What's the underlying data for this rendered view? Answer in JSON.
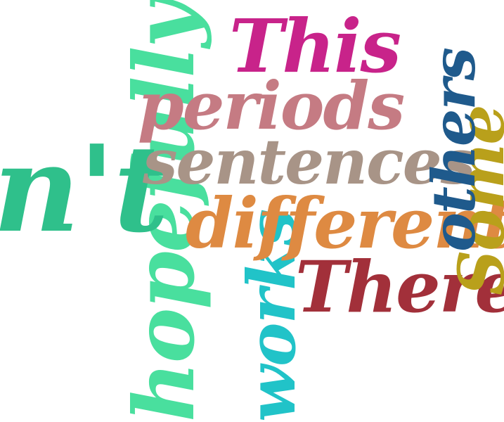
{
  "words": {
    "this": {
      "text": "This",
      "color": "#c8238a"
    },
    "periods": {
      "text": "periods",
      "color": "#c57b83"
    },
    "sentences": {
      "text": "sentences",
      "color": "#a89487"
    },
    "nt": {
      "text": "n't",
      "color": "#2fc08b"
    },
    "different": {
      "text": "different",
      "color": "#de8a42"
    },
    "there": {
      "text": "There",
      "color": "#a2303a"
    },
    "others": {
      "text": "others",
      "color": "#1f5a8c"
    },
    "some": {
      "text": "Some",
      "color": "#b9a01b"
    },
    "hopefully": {
      "text": "hopefully",
      "color": "#49df9e"
    },
    "works": {
      "text": "works",
      "color": "#21c3c8"
    }
  }
}
